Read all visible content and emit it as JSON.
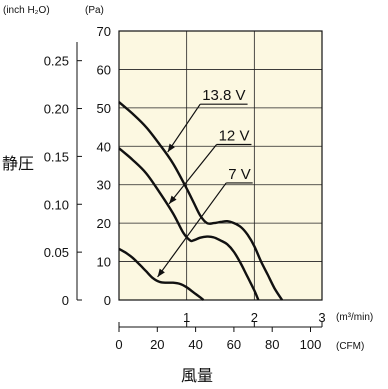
{
  "chart_data": {
    "type": "line",
    "title": "",
    "ylabel": "静圧",
    "xlabel": "風量",
    "unit_labels": {
      "y_left": "(inch H₂O)",
      "y_right": "(Pa)",
      "x_top": "(m³/min)",
      "x_bottom": "(CFM)"
    },
    "plot_background": "#fcf8e1",
    "axes": {
      "x_m3min": {
        "range": [
          0,
          3
        ],
        "ticks": [
          "0",
          "1",
          "2",
          "3"
        ]
      },
      "x_cfm": {
        "range": [
          0,
          106
        ],
        "ticks": [
          "0",
          "20",
          "40",
          "60",
          "80",
          "100"
        ]
      },
      "y_pa": {
        "range": [
          0,
          70
        ],
        "ticks": [
          "0",
          "10",
          "20",
          "30",
          "40",
          "50",
          "60",
          "70"
        ]
      },
      "y_inch": {
        "range": [
          0,
          0.281
        ],
        "ticks": [
          "0",
          "0.05",
          "0.10",
          "0.15",
          "0.20",
          "0.25"
        ]
      }
    },
    "grid": true,
    "series": [
      {
        "name": "13.8 V",
        "x": [
          0,
          0.2,
          0.4,
          0.6,
          0.8,
          1.0,
          1.1,
          1.2,
          1.3,
          1.4,
          1.5,
          1.6,
          1.7,
          1.8,
          1.9,
          2.0,
          2.1,
          2.2,
          2.3,
          2.41
        ],
        "y": [
          51.5,
          48.5,
          45,
          40.5,
          35.5,
          29,
          25.5,
          22,
          20,
          20,
          20.3,
          20.5,
          20,
          19,
          17,
          14,
          10,
          6.5,
          3,
          0
        ]
      },
      {
        "name": "12 V",
        "x": [
          0,
          0.2,
          0.4,
          0.6,
          0.8,
          0.95,
          1.05,
          1.1,
          1.2,
          1.3,
          1.4,
          1.5,
          1.6,
          1.7,
          1.8,
          1.9,
          2.0,
          2.06
        ],
        "y": [
          39.5,
          36.5,
          33,
          28,
          22.5,
          17.5,
          15.5,
          15.5,
          16.2,
          16.5,
          16.3,
          15.5,
          14.5,
          12.5,
          9.5,
          6,
          2.5,
          0
        ]
      },
      {
        "name": "7 V",
        "x": [
          0,
          0.1,
          0.2,
          0.3,
          0.4,
          0.5,
          0.6,
          0.7,
          0.8,
          0.9,
          1.0,
          1.1,
          1.2,
          1.25
        ],
        "y": [
          13.3,
          12.3,
          11,
          9.3,
          7.5,
          5.7,
          4.7,
          4.5,
          4.5,
          4.2,
          3.3,
          2,
          0.7,
          0
        ]
      }
    ],
    "annotations": [
      {
        "series": "13.8 V",
        "label": "13.8 V",
        "label_at": [
          1.55,
          52
        ],
        "arrow_to": [
          0.72,
          38.5
        ]
      },
      {
        "series": "12 V",
        "label": "12 V",
        "label_at": [
          1.7,
          41.5
        ],
        "arrow_to": [
          0.74,
          25
        ]
      },
      {
        "series": "7 V",
        "label": "7 V",
        "label_at": [
          1.78,
          31.5
        ],
        "arrow_to": [
          0.57,
          6
        ]
      }
    ]
  }
}
